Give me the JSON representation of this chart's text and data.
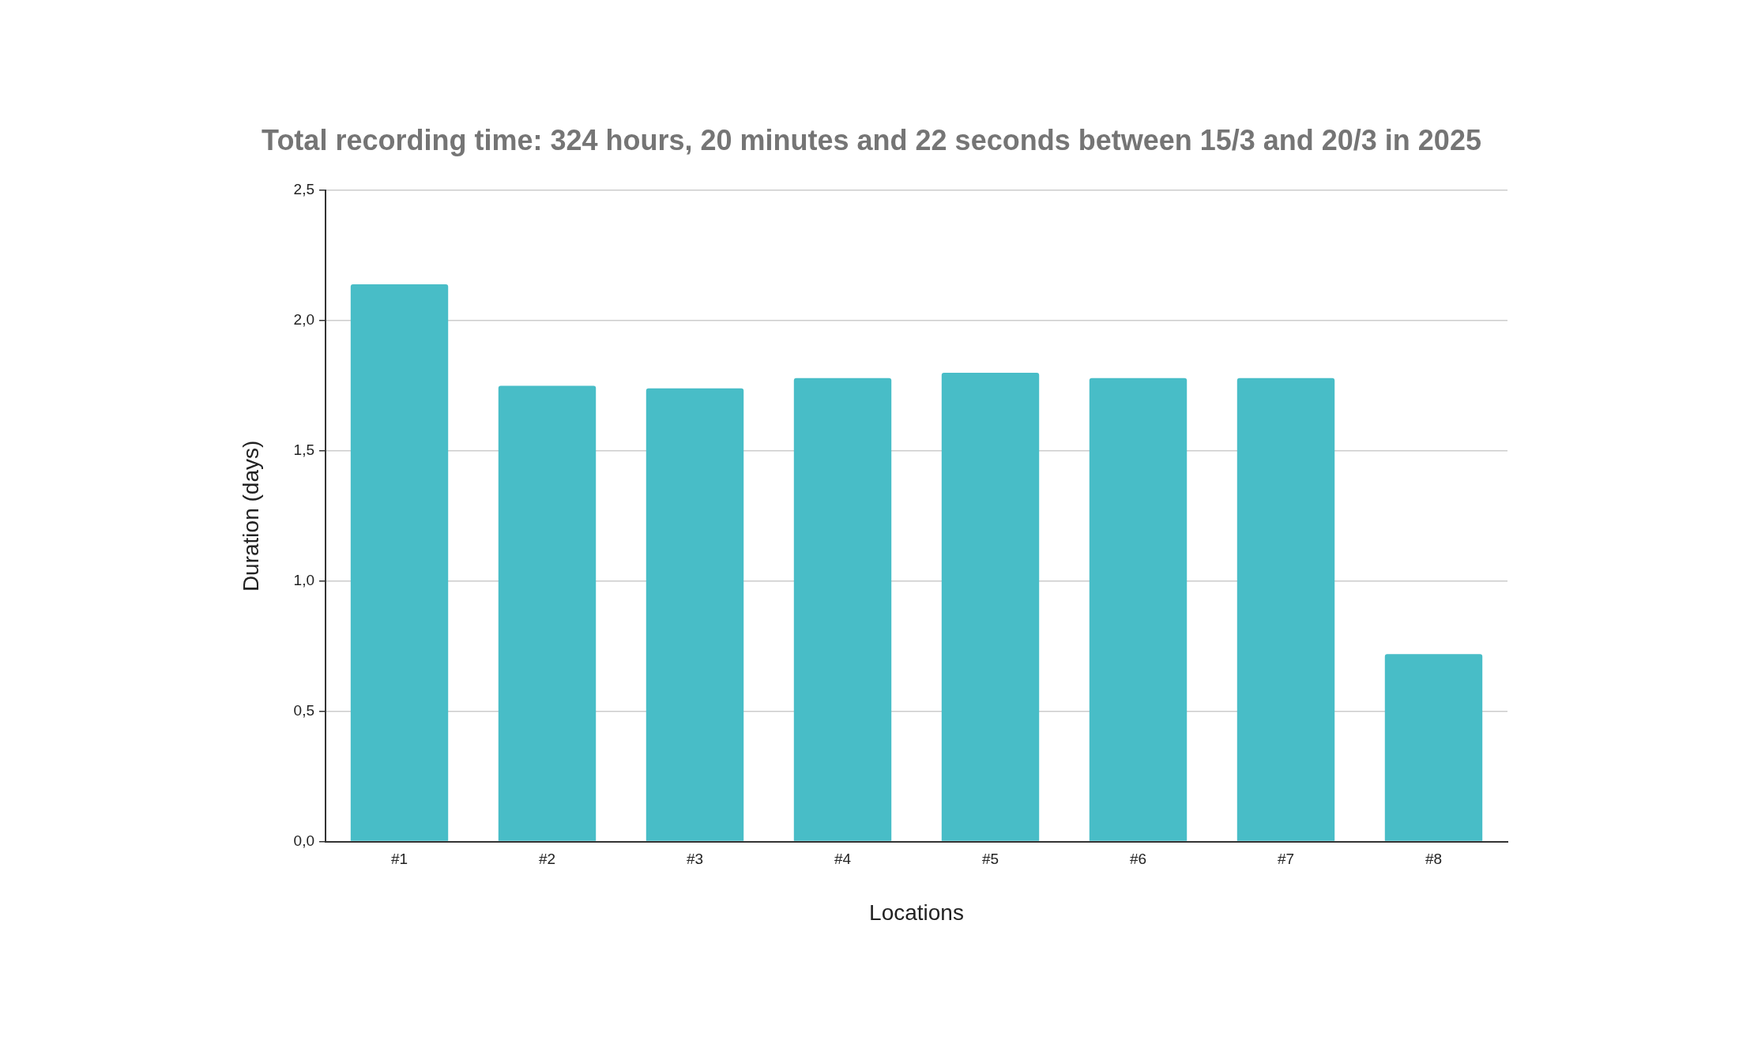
{
  "chart_data": {
    "type": "bar",
    "title": "Total recording time: 324 hours, 20 minutes and 22 seconds between 15/3 and 20/3 in 2025",
    "xlabel": "Locations",
    "ylabel": "Duration (days)",
    "categories": [
      "#1",
      "#2",
      "#3",
      "#4",
      "#5",
      "#6",
      "#7",
      "#8"
    ],
    "values": [
      2.14,
      1.75,
      1.74,
      1.78,
      1.8,
      1.78,
      1.78,
      0.72
    ],
    "color": "#48bdc7",
    "ylim": [
      0,
      2.5
    ],
    "yticks": [
      {
        "value": 0,
        "label": "0,0"
      },
      {
        "value": 0.5,
        "label": "0,5"
      },
      {
        "value": 1,
        "label": "1,0"
      },
      {
        "value": 1.5,
        "label": "1,5"
      },
      {
        "value": 2,
        "label": "2,0"
      },
      {
        "value": 2.5,
        "label": "2,5"
      }
    ],
    "grid": "y",
    "legend": false
  }
}
